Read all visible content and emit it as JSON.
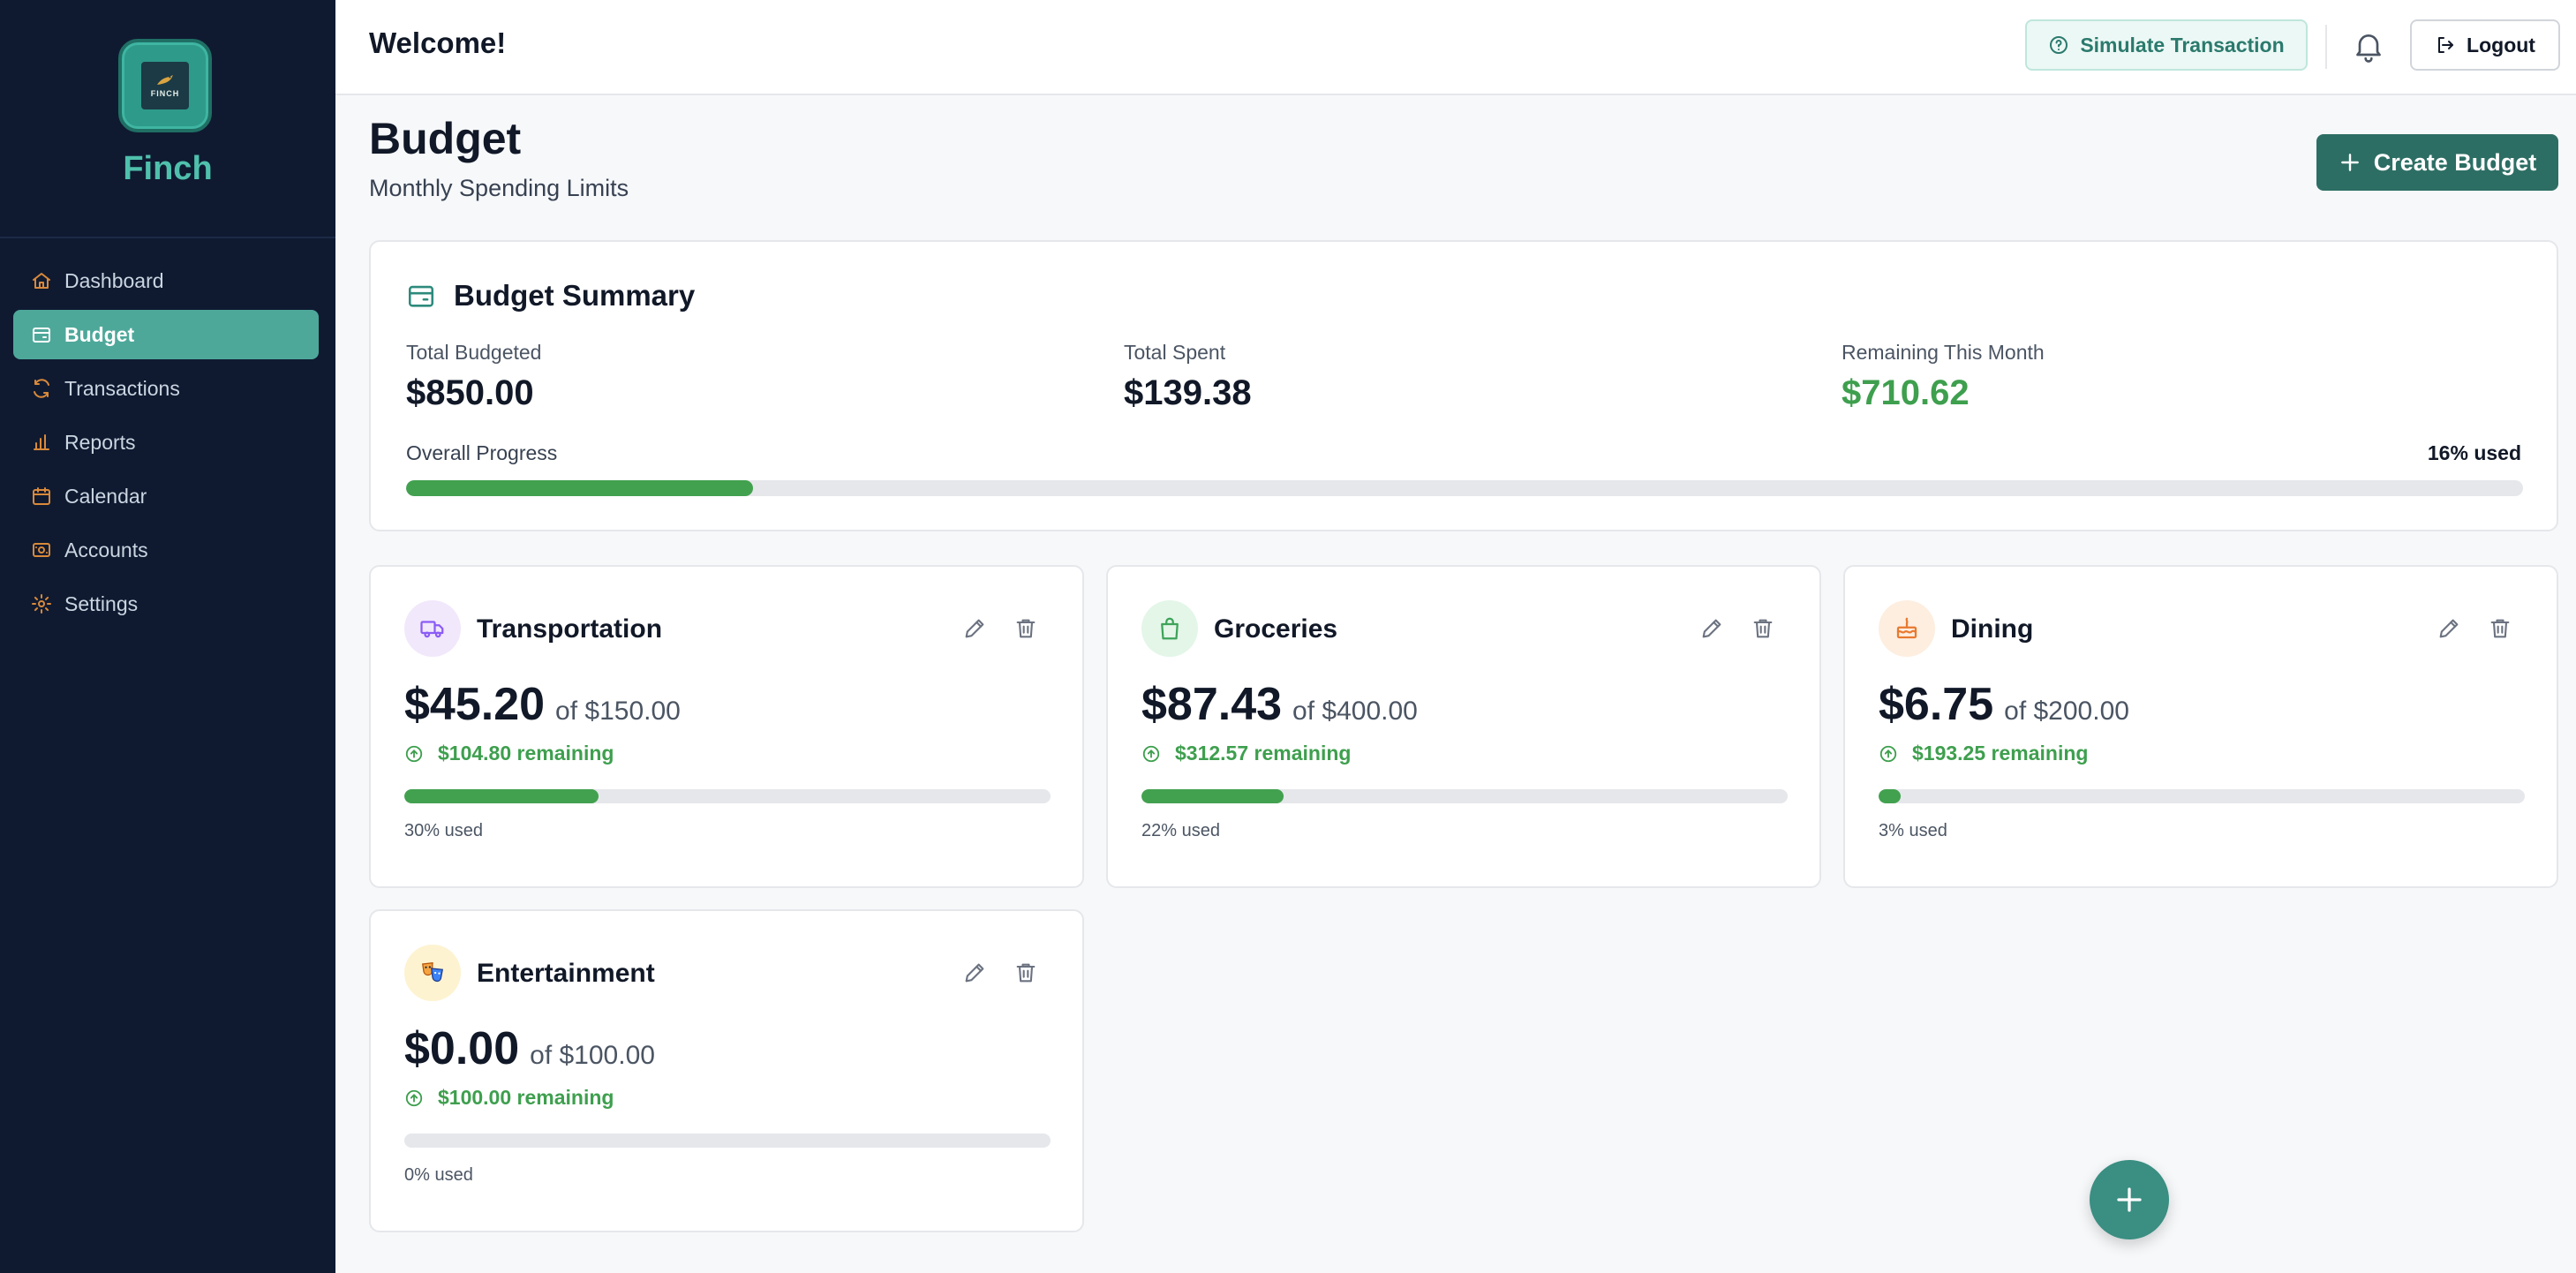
{
  "sidebar": {
    "brand": "Finch",
    "logo_text": "FINCH",
    "items": [
      {
        "label": "Dashboard",
        "icon": "home-icon",
        "active": false
      },
      {
        "label": "Budget",
        "icon": "wallet-icon",
        "active": true
      },
      {
        "label": "Transactions",
        "icon": "refresh-icon",
        "active": false
      },
      {
        "label": "Reports",
        "icon": "bar-chart-icon",
        "active": false
      },
      {
        "label": "Calendar",
        "icon": "calendar-icon",
        "active": false
      },
      {
        "label": "Accounts",
        "icon": "accounts-icon",
        "active": false
      },
      {
        "label": "Settings",
        "icon": "gear-icon",
        "active": false
      }
    ]
  },
  "header": {
    "welcome": "Welcome!",
    "simulate_label": "Simulate Transaction",
    "logout_label": "Logout"
  },
  "page": {
    "title": "Budget",
    "subtitle": "Monthly Spending Limits",
    "create_label": "Create Budget"
  },
  "summary": {
    "title": "Budget Summary",
    "total_budgeted_label": "Total Budgeted",
    "total_budgeted": "$850.00",
    "total_spent_label": "Total Spent",
    "total_spent": "$139.38",
    "remaining_label": "Remaining This Month",
    "remaining": "$710.62",
    "progress_label": "Overall Progress",
    "progress_text": "16% used",
    "progress_fraction": 0.164
  },
  "categories": [
    {
      "name": "Transportation",
      "spent": "$45.20",
      "of": "of $150.00",
      "remaining": "$104.80 remaining",
      "used": "30% used",
      "fraction": 0.3,
      "icon": "truck-icon",
      "icon_bg": "#f1e8fb",
      "icon_color": "#8b5cf6"
    },
    {
      "name": "Groceries",
      "spent": "$87.43",
      "of": "of $400.00",
      "remaining": "$312.57 remaining",
      "used": "22% used",
      "fraction": 0.22,
      "icon": "shopping-bag-icon",
      "icon_bg": "#e3f6e8",
      "icon_color": "#3ea35a"
    },
    {
      "name": "Dining",
      "spent": "$6.75",
      "of": "of $200.00",
      "remaining": "$193.25 remaining",
      "used": "3% used",
      "fraction": 0.034,
      "icon": "cake-icon",
      "icon_bg": "#fdeee0",
      "icon_color": "#e9792f"
    },
    {
      "name": "Entertainment",
      "spent": "$0.00",
      "of": "of $100.00",
      "remaining": "$100.00 remaining",
      "used": "0% used",
      "fraction": 0.0,
      "icon": "theater-masks-icon",
      "icon_bg": "#fdf3d1",
      "icon_color": "#d97706"
    }
  ],
  "colors": {
    "sidebar_bg": "#0f1a31",
    "accent": "#4ea89a",
    "primary_button": "#2d6e64",
    "positive": "#3e9f4e"
  }
}
